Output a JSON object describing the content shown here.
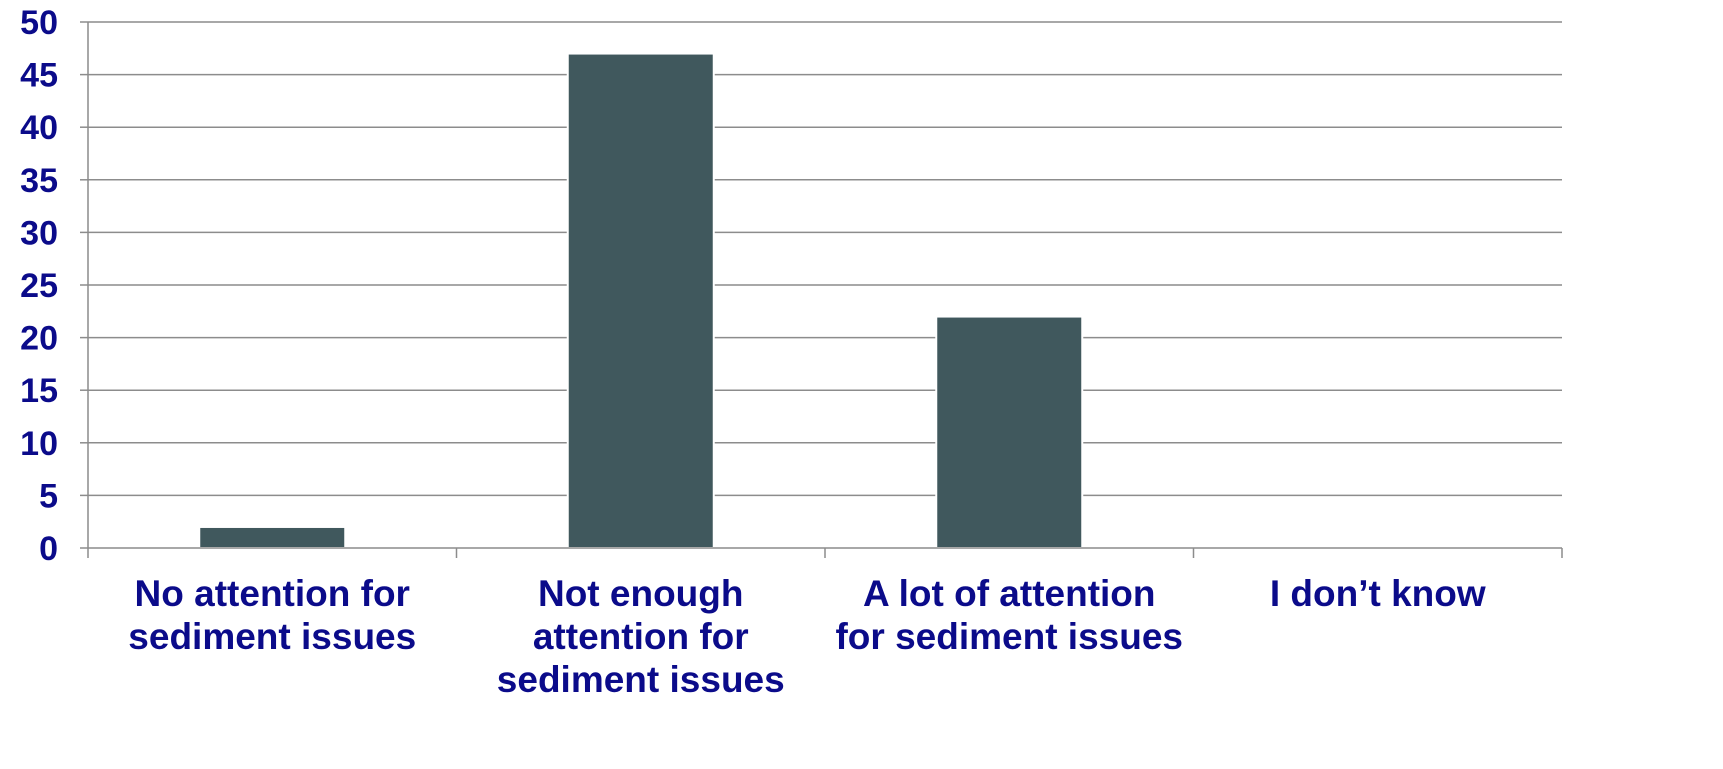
{
  "chart_data": {
    "type": "bar",
    "categories": [
      [
        "No attention for",
        "sediment issues"
      ],
      [
        "Not enough",
        "attention for",
        "sediment issues"
      ],
      [
        "A lot of attention",
        "for sediment issues"
      ],
      [
        "I don’t know"
      ]
    ],
    "values": [
      2,
      47,
      22,
      0
    ],
    "ylim": [
      0,
      50
    ],
    "yticks": [
      "0",
      "5",
      "10",
      "15",
      "20",
      "25",
      "30",
      "35",
      "40",
      "45",
      "50"
    ],
    "title": "",
    "xlabel": "",
    "ylabel": "",
    "grid": true,
    "legend": "none",
    "colors": {
      "bar": "#40585d",
      "bar_edge": "#ffffff",
      "text": "#0b0b8a",
      "grid": "#8c8c8c"
    }
  }
}
